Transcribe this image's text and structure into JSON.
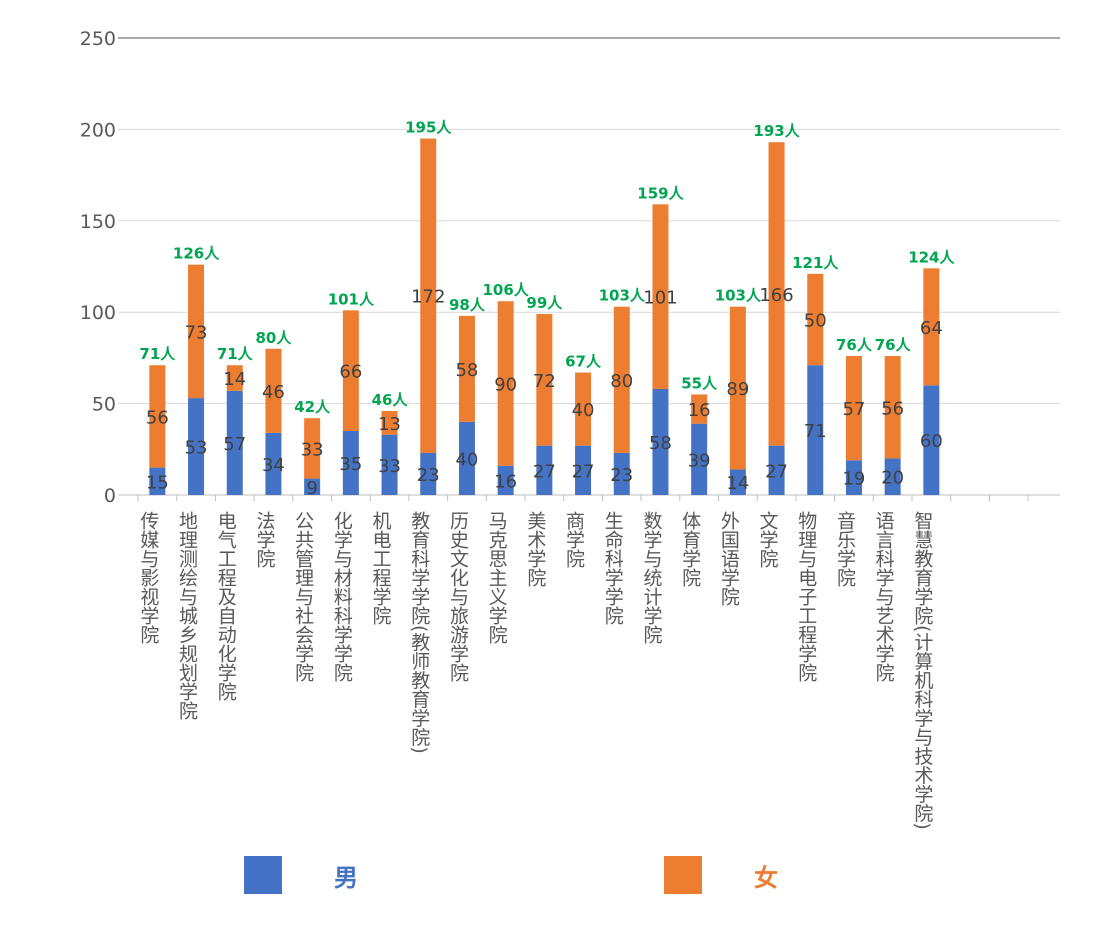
{
  "chart_data": {
    "type": "bar",
    "stacked": true,
    "categories": [
      "传媒与影视学院",
      "地理测绘与城乡规划学院",
      "电气工程及自动化学院",
      "法学院",
      "公共管理与社会学院",
      "化学与材料科学学院",
      "机电工程学院",
      "教育科学学院(教师教育学院)",
      "历史文化与旅游学院",
      "马克思主义学院",
      "美术学院",
      "商学院",
      "生命科学学院",
      "数学与统计学院",
      "体育学院",
      "外国语学院",
      "文学院",
      "物理与电子工程学院",
      "音乐学院",
      "语言科学与艺术学院",
      "智慧教育学院(计算机科学与技术学院)"
    ],
    "series": [
      {
        "name": "男",
        "color": "#4472C4",
        "values": [
          15,
          53,
          57,
          34,
          9,
          35,
          33,
          23,
          40,
          16,
          27,
          27,
          23,
          58,
          39,
          14,
          27,
          71,
          19,
          20,
          60
        ]
      },
      {
        "name": "女",
        "color": "#ED7D31",
        "values": [
          56,
          73,
          14,
          46,
          33,
          66,
          13,
          172,
          58,
          90,
          72,
          40,
          80,
          101,
          16,
          89,
          166,
          50,
          57,
          56,
          64
        ]
      }
    ],
    "totals": [
      "71人",
      "126人",
      "71人",
      "80人",
      "42人",
      "101人",
      "46人",
      "195人",
      "98人",
      "106人",
      "99人",
      "67人",
      "103人",
      "159人",
      "55人",
      "103人",
      "193人",
      "121人",
      "76人",
      "76人",
      "124人"
    ],
    "total_color": "#00A550",
    "ylim": [
      0,
      250
    ],
    "yticks": [
      0,
      50,
      100,
      150,
      200,
      250
    ],
    "grid": true,
    "legend_position": "bottom"
  },
  "legend": {
    "male_label": "男",
    "female_label": "女"
  }
}
